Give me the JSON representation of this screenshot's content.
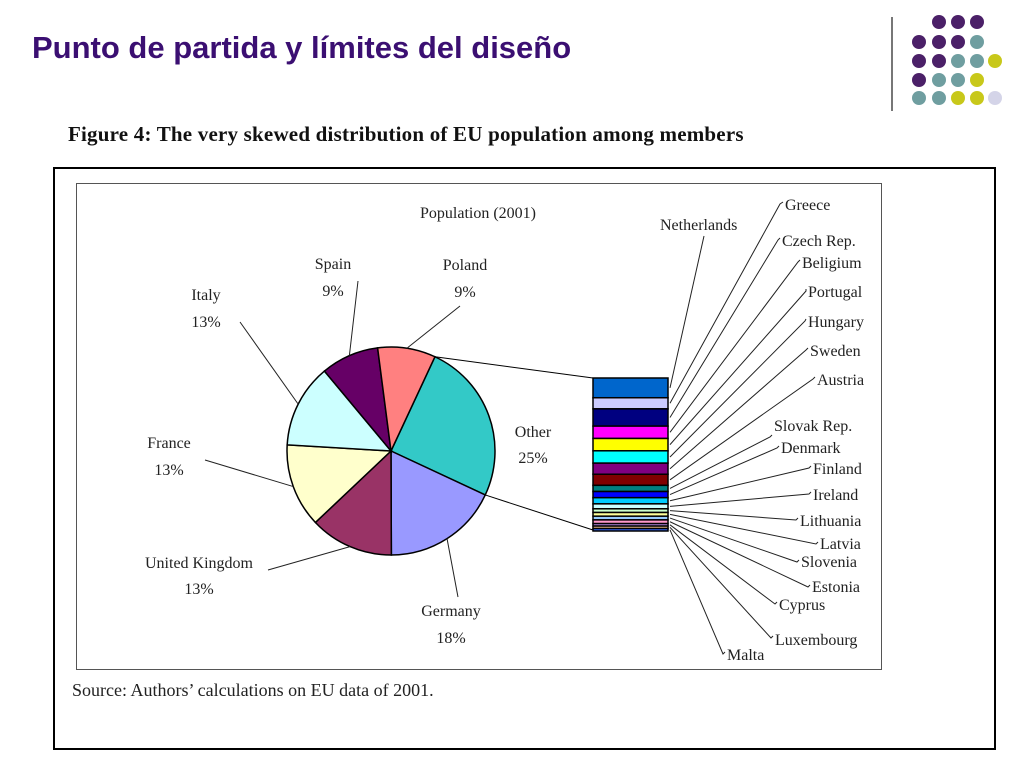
{
  "slide": {
    "title": "Punto de partida y límites del diseño"
  },
  "figure": {
    "caption": "Figure 4: The very skewed distribution of EU population among members",
    "source": "Source: Authors’ calculations on EU data of 2001."
  },
  "chart_data": {
    "type": "pie",
    "title": "Population (2001)",
    "slices": [
      {
        "label": "Other",
        "value": 25,
        "value_label": "25%",
        "color": "#33c9c7"
      },
      {
        "label": "Germany",
        "value": 18,
        "value_label": "18%",
        "color": "#9999ff"
      },
      {
        "label": "United Kingdom",
        "value": 13,
        "value_label": "13%",
        "color": "#993366"
      },
      {
        "label": "France",
        "value": 13,
        "value_label": "13%",
        "color": "#ffffcc"
      },
      {
        "label": "Italy",
        "value": 13,
        "value_label": "13%",
        "color": "#ccffff"
      },
      {
        "label": "Spain",
        "value": 9,
        "value_label": "9%",
        "color": "#660066"
      },
      {
        "label": "Poland",
        "value": 9,
        "value_label": "9%",
        "color": "#ff8080"
      }
    ],
    "breakdown": {
      "of": "Other",
      "items": [
        {
          "label": "Netherlands",
          "color": "#0066cc"
        },
        {
          "label": "Greece",
          "color": "#ccccff"
        },
        {
          "label": "Czech Rep.",
          "color": "#000080"
        },
        {
          "label": "Beligium",
          "color": "#ff00ff"
        },
        {
          "label": "Portugal",
          "color": "#ffff00"
        },
        {
          "label": "Hungary",
          "color": "#00ffff"
        },
        {
          "label": "Sweden",
          "color": "#800080"
        },
        {
          "label": "Austria",
          "color": "#800000"
        },
        {
          "label": "Slovak Rep.",
          "color": "#008080"
        },
        {
          "label": "Denmark",
          "color": "#0000ff"
        },
        {
          "label": "Finland",
          "color": "#00ccff"
        },
        {
          "label": "Ireland",
          "color": "#ccffff"
        },
        {
          "label": "Lithuania",
          "color": "#ccffcc"
        },
        {
          "label": "Latvia",
          "color": "#ffff99"
        },
        {
          "label": "Slovenia",
          "color": "#99ccff"
        },
        {
          "label": "Estonia",
          "color": "#ff99cc"
        },
        {
          "label": "Cyprus",
          "color": "#cc99ff"
        },
        {
          "label": "Luxembourg",
          "color": "#ffcc99"
        },
        {
          "label": "Malta",
          "color": "#3366ff"
        }
      ]
    }
  },
  "decor": {
    "dot_colors": {
      "purple": "#4b2068",
      "teal": "#6f9ea0",
      "lime": "#c8c81a",
      "lavender": "#d4d4e8"
    }
  }
}
